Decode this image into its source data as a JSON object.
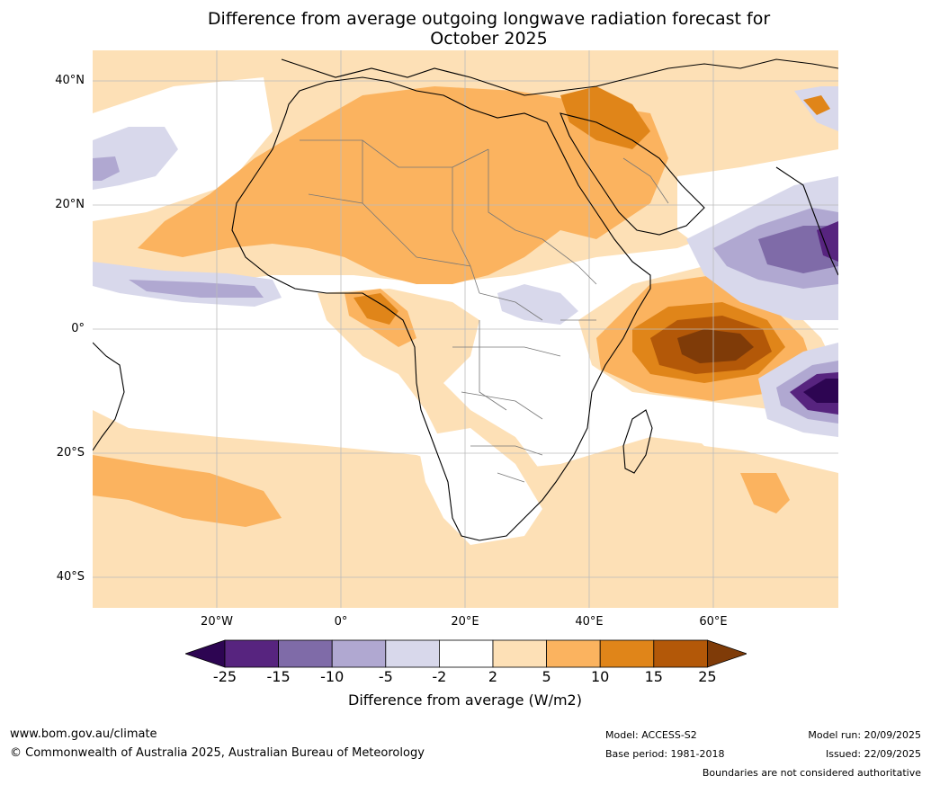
{
  "title_line1": "Difference from average outgoing longwave radiation forecast for",
  "title_line2": "October 2025",
  "lat_labels": [
    "40°N",
    "20°N",
    "0°",
    "20°S",
    "40°S"
  ],
  "lon_labels": [
    "20°W",
    "0°",
    "20°E",
    "40°E",
    "60°E"
  ],
  "colorbar": {
    "ticks": [
      "-25",
      "-15",
      "-10",
      "-5",
      "-2",
      "2",
      "5",
      "10",
      "15",
      "25"
    ],
    "colors": [
      "#2d0552",
      "#57247f",
      "#7f6ba8",
      "#b0a8d1",
      "#d8d8eb",
      "#ffffff",
      "#fde0b6",
      "#fbb35f",
      "#e08519",
      "#b35808",
      "#7f3b08"
    ],
    "label": "Difference from average (W/m2)"
  },
  "colors": {
    "light_orange": "#fde0b6",
    "orange": "#fbb35f",
    "dark_orange": "#e08519",
    "darker_orange": "#b35808",
    "brown": "#7f3b08",
    "light_purple": "#d8d8eb",
    "purple": "#b0a8d1",
    "mid_purple": "#7f6ba8",
    "dark_purple": "#57247f",
    "deep_purple": "#2d0552"
  },
  "footer": {
    "website": "www.bom.gov.au/climate",
    "copyright": "© Commonwealth of Australia 2025, Australian Bureau of Meteorology",
    "model": "Model: ACCESS-S2",
    "base_period": "Base period: 1981-2018",
    "model_run": "Model run: 20/09/2025",
    "issued": "Issued: 22/09/2025",
    "disclaimer": "Boundaries are not considered authoritative"
  }
}
